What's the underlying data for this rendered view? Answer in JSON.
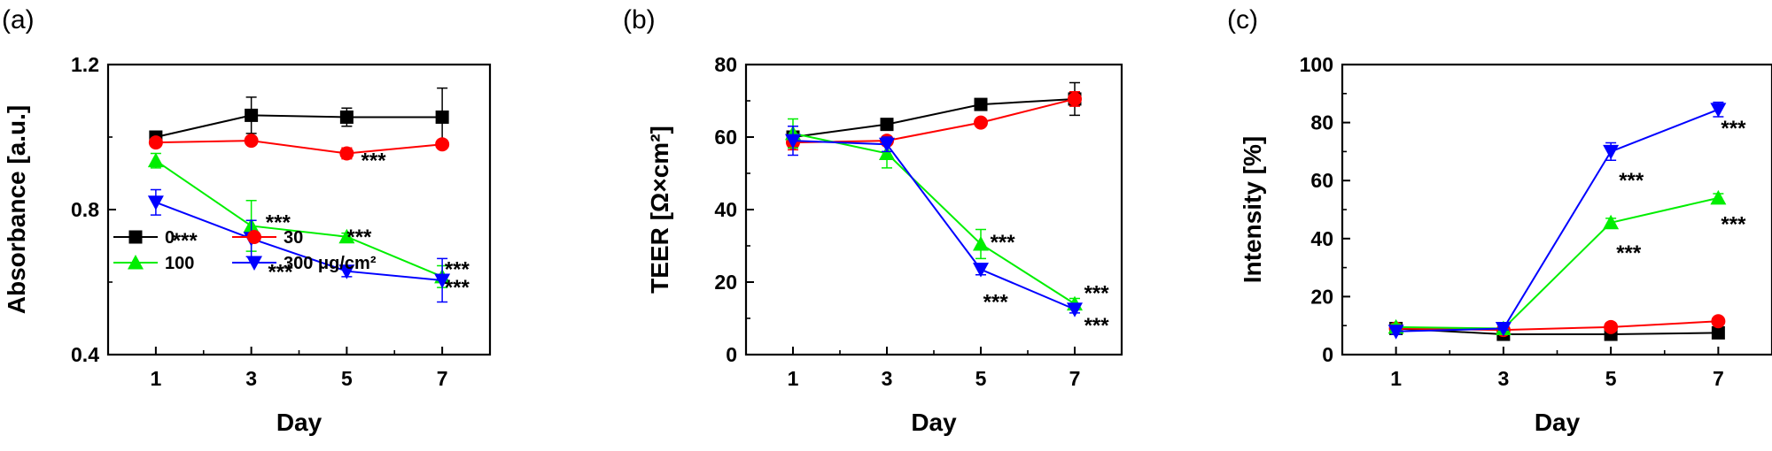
{
  "chart_data": [
    {
      "type": "line",
      "panel_label": "(a)",
      "xlabel": "Day",
      "ylabel": "Absorbance [a.u.]",
      "categories": [
        "1",
        "3",
        "5",
        "7"
      ],
      "x": [
        1,
        3,
        5,
        7
      ],
      "xlim": [
        0,
        8
      ],
      "ylim": [
        0.4,
        1.2
      ],
      "yticks": [
        0.4,
        0.8,
        1.2
      ],
      "ytick_labels": [
        "0.4",
        "0.8",
        "1.2"
      ],
      "legend_position": "bottom-left",
      "series": [
        {
          "name": "0",
          "color": "#000000",
          "marker": "square",
          "values": [
            1.0,
            1.06,
            1.055,
            1.055
          ],
          "errors": [
            0.01,
            0.05,
            0.025,
            0.08
          ]
        },
        {
          "name": "30",
          "color": "#ff0000",
          "marker": "circle",
          "values": [
            0.985,
            0.99,
            0.955,
            0.98
          ],
          "errors": [
            0.01,
            0.01,
            0.015,
            0.01
          ]
        },
        {
          "name": "100",
          "color": "#00ee00",
          "marker": "triangle-up",
          "values": [
            0.935,
            0.755,
            0.725,
            0.615
          ],
          "errors": [
            0.02,
            0.07,
            0.01,
            0.03
          ]
        },
        {
          "name": "300 μg/cm²",
          "color": "#0000ff",
          "marker": "triangle-down",
          "values": [
            0.82,
            0.72,
            0.63,
            0.605
          ],
          "errors": [
            0.035,
            0.05,
            0.015,
            0.06
          ]
        }
      ],
      "annotations": [
        {
          "text": "***",
          "x": 5.3,
          "y": 0.935
        },
        {
          "text": "***",
          "x": 3.3,
          "y": 0.765
        },
        {
          "text": "***",
          "x": 1.35,
          "y": 0.715
        },
        {
          "text": "***",
          "x": 5.0,
          "y": 0.725
        },
        {
          "text": "***",
          "x": 3.35,
          "y": 0.6275
        },
        {
          "text": "***",
          "x": 7.05,
          "y": 0.635
        },
        {
          "text": "***",
          "x": 7.05,
          "y": 0.585
        }
      ]
    },
    {
      "type": "line",
      "panel_label": "(b)",
      "xlabel": "Day",
      "ylabel": "TEER [Ω×cm²]",
      "categories": [
        "1",
        "3",
        "5",
        "7"
      ],
      "x": [
        1,
        3,
        5,
        7
      ],
      "xlim": [
        0,
        8
      ],
      "ylim": [
        0,
        80
      ],
      "yticks": [
        0,
        20,
        40,
        60,
        80
      ],
      "ytick_labels": [
        "0",
        "20",
        "40",
        "60",
        "80"
      ],
      "series": [
        {
          "color": "#000000",
          "marker": "square",
          "values": [
            60,
            63.5,
            69,
            70.5
          ],
          "errors": [
            1.5,
            1.0,
            1.0,
            4.5
          ]
        },
        {
          "color": "#ff0000",
          "marker": "circle",
          "values": [
            58.5,
            59,
            64,
            70.5
          ],
          "errors": [
            2.0,
            1.0,
            1.0,
            2.0
          ]
        },
        {
          "color": "#00ee00",
          "marker": "triangle-up",
          "values": [
            61,
            55.5,
            30.5,
            14
          ],
          "errors": [
            4.0,
            4.0,
            4.0,
            1.5
          ]
        },
        {
          "color": "#0000ff",
          "marker": "triangle-down",
          "values": [
            59,
            58,
            23.5,
            12.5
          ],
          "errors": [
            4.0,
            2.0,
            1.5,
            1.0
          ]
        }
      ],
      "annotations": [
        {
          "text": "***",
          "x": 5.2,
          "y": 31
        },
        {
          "text": "***",
          "x": 5.05,
          "y": 14.5
        },
        {
          "text": "***",
          "x": 7.2,
          "y": 17
        },
        {
          "text": "***",
          "x": 7.2,
          "y": 8
        }
      ]
    },
    {
      "type": "line",
      "panel_label": "(c)",
      "xlabel": "Day",
      "ylabel": "Intensity [%]",
      "categories": [
        "1",
        "3",
        "5",
        "7"
      ],
      "x": [
        1,
        3,
        5,
        7
      ],
      "xlim": [
        0,
        8
      ],
      "ylim": [
        0,
        100
      ],
      "yticks": [
        0,
        20,
        40,
        60,
        80,
        100
      ],
      "ytick_labels": [
        "0",
        "20",
        "40",
        "60",
        "80",
        "100"
      ],
      "series": [
        {
          "color": "#000000",
          "marker": "square",
          "values": [
            9,
            7,
            7,
            7.5
          ],
          "errors": [
            1.0,
            0.5,
            0.5,
            0.5
          ]
        },
        {
          "color": "#ff0000",
          "marker": "circle",
          "values": [
            9,
            8.5,
            9.5,
            11.5
          ],
          "errors": [
            1.0,
            0.5,
            0.5,
            0.5
          ]
        },
        {
          "color": "#00ee00",
          "marker": "triangle-up",
          "values": [
            9.5,
            9,
            45.5,
            54
          ],
          "errors": [
            1.0,
            0.5,
            1.5,
            1.5
          ]
        },
        {
          "color": "#0000ff",
          "marker": "triangle-down",
          "values": [
            8,
            9,
            70,
            84.5
          ],
          "errors": [
            1.0,
            0.5,
            3.0,
            2.5
          ]
        }
      ],
      "annotations": [
        {
          "text": "***",
          "x": 5.15,
          "y": 60
        },
        {
          "text": "***",
          "x": 5.1,
          "y": 35
        },
        {
          "text": "***",
          "x": 7.05,
          "y": 78
        },
        {
          "text": "***",
          "x": 7.05,
          "y": 45
        }
      ]
    }
  ]
}
